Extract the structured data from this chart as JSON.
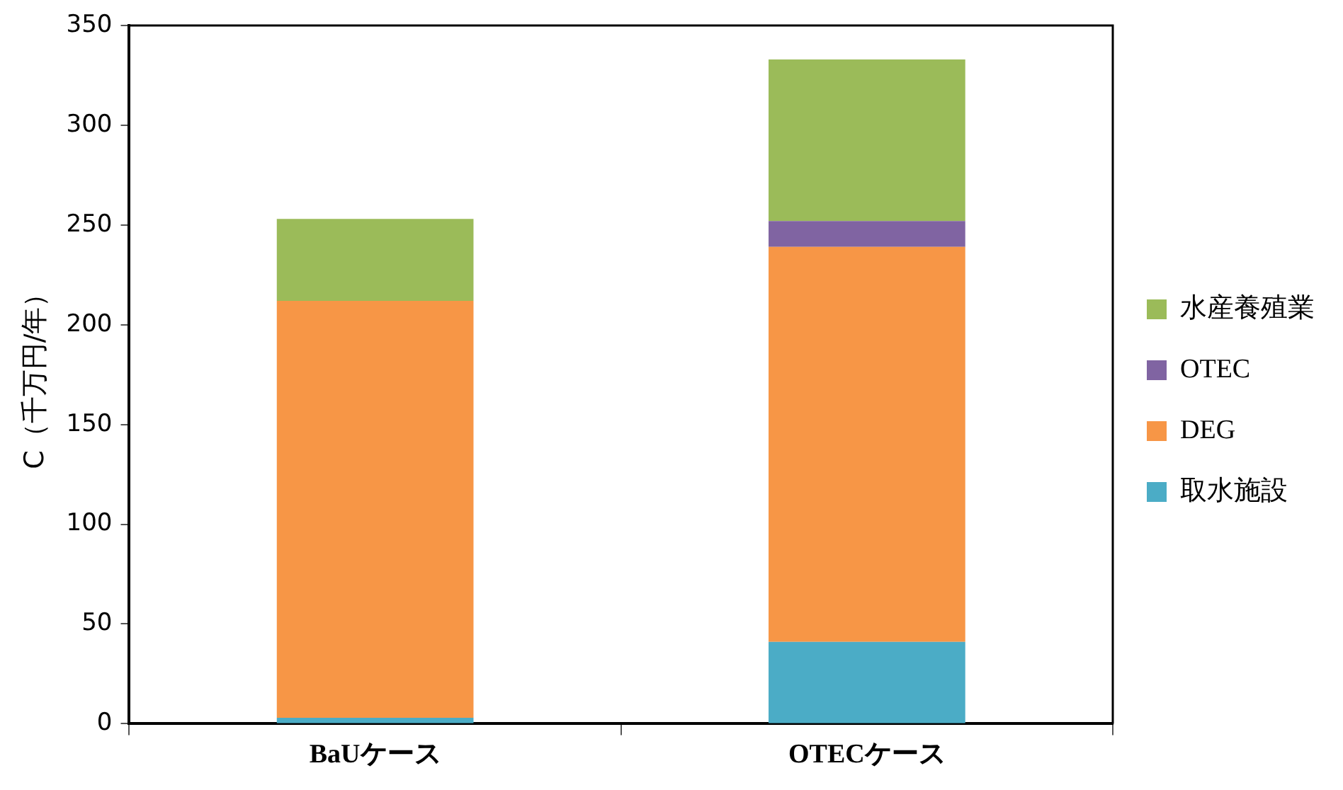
{
  "chart_data": {
    "type": "bar",
    "stacked": true,
    "ylabel": "C（千万円/年）",
    "categories": [
      "BaUケース",
      "OTECケース"
    ],
    "series": [
      {
        "name": "取水施設",
        "color": "#4bacc6",
        "values": [
          3,
          41
        ]
      },
      {
        "name": "DEG",
        "color": "#f79646",
        "values": [
          209,
          198
        ]
      },
      {
        "name": "OTEC",
        "color": "#8064a2",
        "values": [
          0,
          13
        ]
      },
      {
        "name": "水産養殖業",
        "color": "#9bbb59",
        "values": [
          41,
          81
        ]
      }
    ],
    "ylim": [
      0,
      350
    ],
    "yticks": [
      0,
      50,
      100,
      150,
      200,
      250,
      300,
      350
    ],
    "grid": false,
    "legend": "right"
  }
}
